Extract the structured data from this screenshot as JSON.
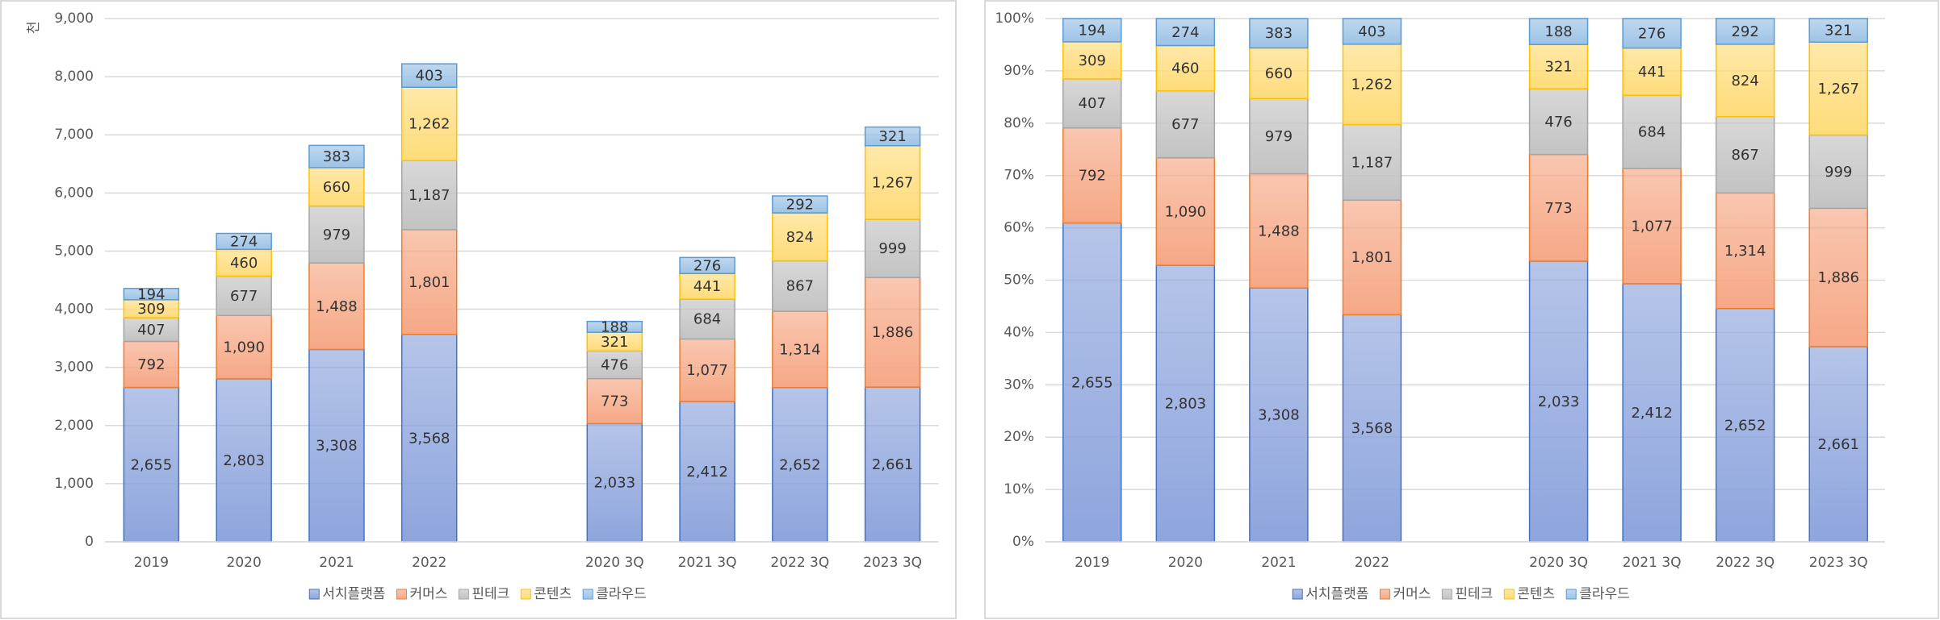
{
  "chart_data": [
    {
      "type": "stacked_bar",
      "y_label": "천",
      "categories": [
        "2019",
        "2020",
        "2021",
        "2022",
        null,
        "2020 3Q",
        "2021 3Q",
        "2022 3Q",
        "2023 3Q"
      ],
      "ylim": [
        0,
        9000
      ],
      "yticks": [
        0,
        {
          "value": 1000,
          "label": "1,000"
        },
        {
          "value": 2000,
          "label": "2,000"
        },
        {
          "value": 3000,
          "label": "3,000"
        },
        {
          "value": 4000,
          "label": "4,000"
        },
        {
          "value": 5000,
          "label": "5,000"
        },
        {
          "value": 6000,
          "label": "6,000"
        },
        {
          "value": 7000,
          "label": "7,000"
        },
        {
          "value": 8000,
          "label": "8,000"
        },
        {
          "value": 9000,
          "label": "9,000"
        }
      ],
      "grid": true,
      "legend": "bottom",
      "series": [
        {
          "name": "서치플랫폼",
          "color": "#8ea5dd",
          "edgecolor": "#4472c4",
          "values": [
            2655,
            2803,
            3308,
            3568,
            null,
            2033,
            2412,
            2652,
            2661
          ],
          "value_labels": [
            "2,655",
            "2,803",
            "3,308",
            "3,568",
            null,
            "2,033",
            "2,412",
            "2,652",
            "2,661"
          ]
        },
        {
          "name": "커머스",
          "color": "#f6a886",
          "edgecolor": "#ed7d31",
          "values": [
            792,
            1090,
            1488,
            1801,
            null,
            773,
            1077,
            1314,
            1886
          ],
          "value_labels": [
            "792",
            "1,090",
            "1,488",
            "1,801",
            null,
            "773",
            "1,077",
            "1,314",
            "1,886"
          ]
        },
        {
          "name": "핀테크",
          "color": "#c3c3c3",
          "edgecolor": "#a5a5a5",
          "values": [
            407,
            677,
            979,
            1187,
            null,
            476,
            684,
            867,
            999
          ],
          "value_labels": [
            "407",
            "677",
            "979",
            "1,187",
            null,
            "476",
            "684",
            "867",
            "999"
          ]
        },
        {
          "name": "콘텐츠",
          "color": "#ffdc7a",
          "edgecolor": "#ffc000",
          "values": [
            309,
            460,
            660,
            1262,
            null,
            321,
            441,
            824,
            1267
          ],
          "value_labels": [
            "309",
            "460",
            "660",
            "1,262",
            null,
            "321",
            "441",
            "824",
            "1,267"
          ]
        },
        {
          "name": "클라우드",
          "color": "#9dc3e6",
          "edgecolor": "#5b9bd5",
          "values": [
            194,
            274,
            383,
            403,
            null,
            188,
            276,
            292,
            321
          ],
          "value_labels": [
            "194",
            "274",
            "383",
            "403",
            null,
            "188",
            "276",
            "292",
            "321"
          ]
        }
      ]
    },
    {
      "type": "stacked_percent",
      "categories": [
        "2019",
        "2020",
        "2021",
        "2022",
        null,
        "2020 3Q",
        "2021 3Q",
        "2022 3Q",
        "2023 3Q"
      ],
      "ylim": [
        0,
        100
      ],
      "yticks": [
        {
          "value": 0,
          "label": "0%"
        },
        {
          "value": 10,
          "label": "10%"
        },
        {
          "value": 20,
          "label": "20%"
        },
        {
          "value": 30,
          "label": "30%"
        },
        {
          "value": 40,
          "label": "40%"
        },
        {
          "value": 50,
          "label": "50%"
        },
        {
          "value": 60,
          "label": "60%"
        },
        {
          "value": 70,
          "label": "70%"
        },
        {
          "value": 80,
          "label": "80%"
        },
        {
          "value": 90,
          "label": "90%"
        },
        {
          "value": 100,
          "label": "100%"
        }
      ],
      "grid": true,
      "legend": "bottom",
      "series": [
        {
          "name": "서치플랫폼",
          "color": "#8ea5dd",
          "edgecolor": "#4472c4",
          "values": [
            2655,
            2803,
            3308,
            3568,
            null,
            2033,
            2412,
            2652,
            2661
          ],
          "value_labels": [
            "2,655",
            "2,803",
            "3,308",
            "3,568",
            null,
            "2,033",
            "2,412",
            "2,652",
            "2,661"
          ]
        },
        {
          "name": "커머스",
          "color": "#f6a886",
          "edgecolor": "#ed7d31",
          "values": [
            792,
            1090,
            1488,
            1801,
            null,
            773,
            1077,
            1314,
            1886
          ],
          "value_labels": [
            "792",
            "1,090",
            "1,488",
            "1,801",
            null,
            "773",
            "1,077",
            "1,314",
            "1,886"
          ]
        },
        {
          "name": "핀테크",
          "color": "#c3c3c3",
          "edgecolor": "#a5a5a5",
          "values": [
            407,
            677,
            979,
            1187,
            null,
            476,
            684,
            867,
            999
          ],
          "value_labels": [
            "407",
            "677",
            "979",
            "1,187",
            null,
            "476",
            "684",
            "867",
            "999"
          ]
        },
        {
          "name": "콘텐츠",
          "color": "#ffdc7a",
          "edgecolor": "#ffc000",
          "values": [
            309,
            460,
            660,
            1262,
            null,
            321,
            441,
            824,
            1267
          ],
          "value_labels": [
            "309",
            "460",
            "660",
            "1,262",
            null,
            "321",
            "441",
            "824",
            "1,267"
          ]
        },
        {
          "name": "클라우드",
          "color": "#9dc3e6",
          "edgecolor": "#5b9bd5",
          "values": [
            194,
            274,
            383,
            403,
            null,
            188,
            276,
            292,
            321
          ],
          "value_labels": [
            "194",
            "274",
            "383",
            "403",
            null,
            "188",
            "276",
            "292",
            "321"
          ]
        }
      ]
    }
  ]
}
